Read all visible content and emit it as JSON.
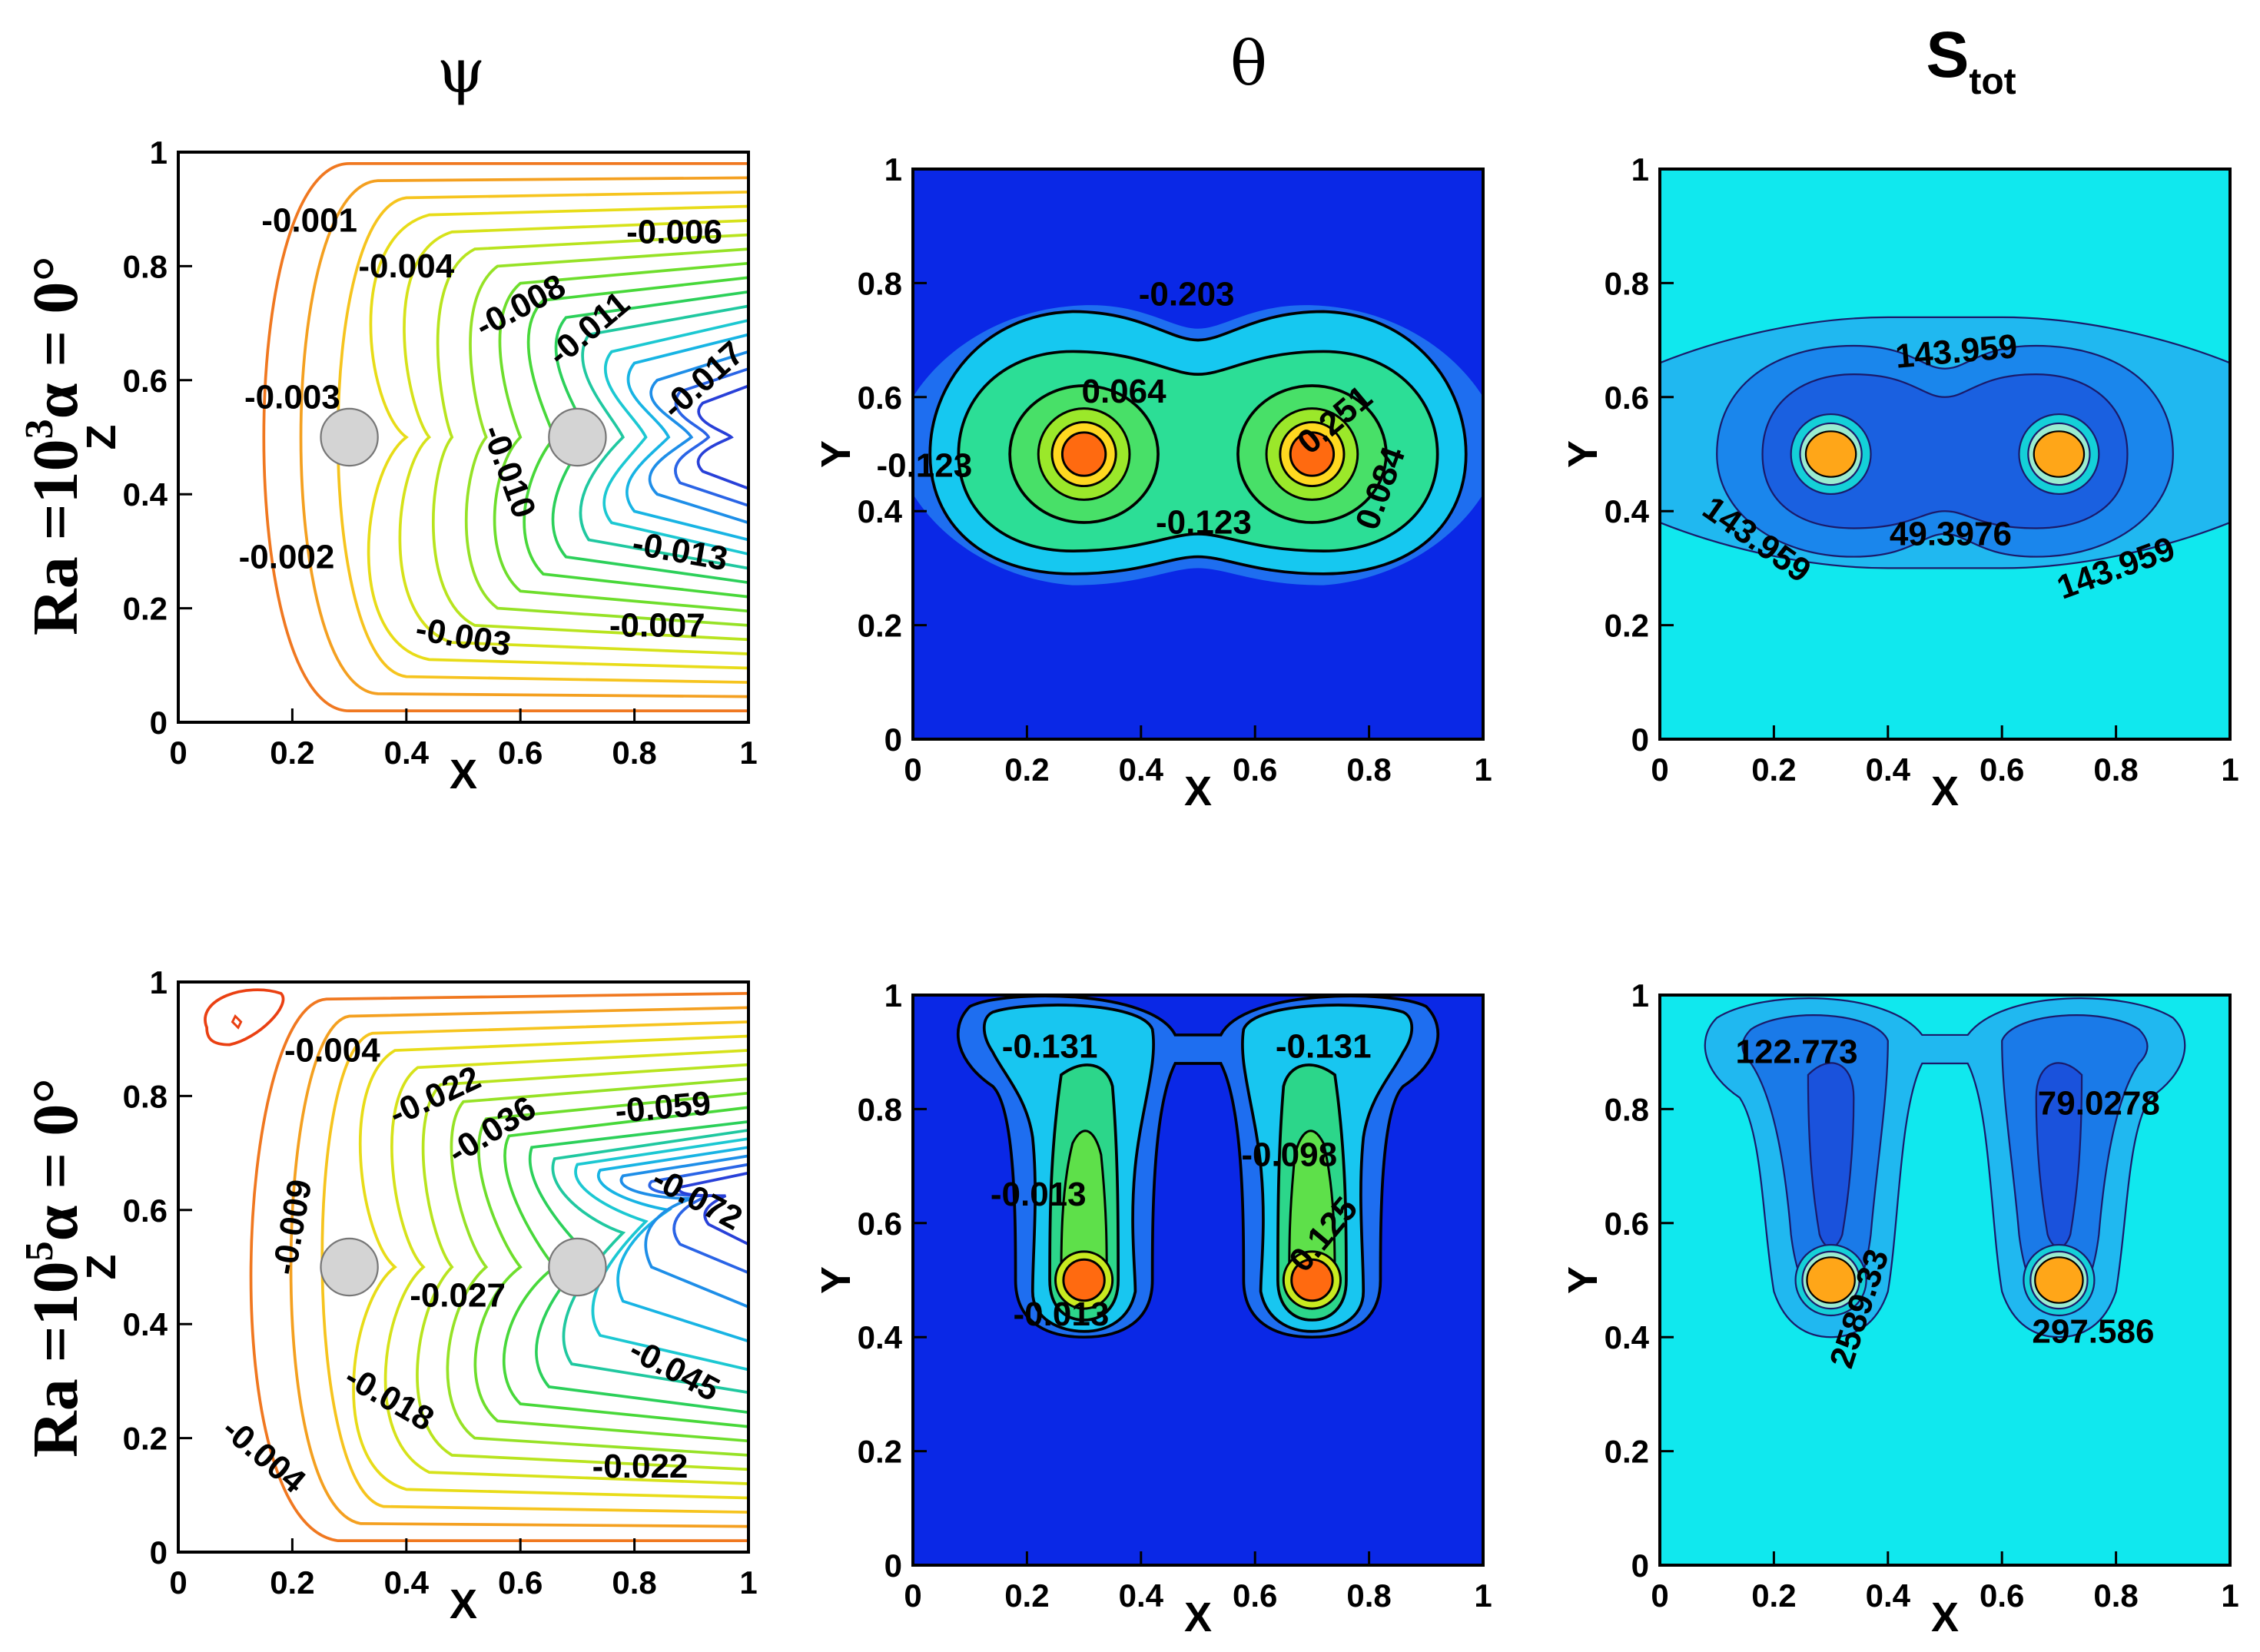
{
  "figure": {
    "column_titles": [
      "ψ",
      "θ",
      "S"
    ],
    "column_title_subscript": "tot",
    "row_titles": [
      {
        "base": "Ra =10",
        "exp": "3",
        "suffix": "α = 0°"
      },
      {
        "base": "Ra =10",
        "exp": "5",
        "suffix": "α = 0°"
      }
    ],
    "colors": {
      "streamline_outer": "#f07820",
      "theta_background": "#0a28e6",
      "entropy_background": "#10e8ee",
      "cylinder_fill": "#d4d4d4",
      "hot_core": "#ff6a10"
    }
  },
  "chart_data": [
    {
      "id": "psi-ra1e3",
      "type": "contour",
      "variable": "ψ",
      "xlabel": "X",
      "ylabel": "Z",
      "xlim": [
        0,
        1
      ],
      "ylim": [
        0,
        1
      ],
      "xticks": [
        "0",
        "0.2",
        "0.4",
        "0.6",
        "0.8",
        "1"
      ],
      "yticks": [
        "0",
        "0.2",
        "0.4",
        "0.6",
        "0.8",
        "1"
      ],
      "contour_labels": [
        {
          "text": "-0.001",
          "x": 0.23,
          "y": 0.88,
          "rot": 0
        },
        {
          "text": "-0.004",
          "x": 0.4,
          "y": 0.8,
          "rot": 0
        },
        {
          "text": "-0.006",
          "x": 0.87,
          "y": 0.86,
          "rot": 0
        },
        {
          "text": "-0.008",
          "x": 0.6,
          "y": 0.73,
          "rot": -28
        },
        {
          "text": "-0.011",
          "x": 0.72,
          "y": 0.69,
          "rot": -40
        },
        {
          "text": "-0.017",
          "x": 0.92,
          "y": 0.6,
          "rot": -42
        },
        {
          "text": "-0.003",
          "x": 0.2,
          "y": 0.57,
          "rot": 0
        },
        {
          "text": "-0.010",
          "x": 0.58,
          "y": 0.44,
          "rot": 70
        },
        {
          "text": "-0.013",
          "x": 0.88,
          "y": 0.3,
          "rot": 10
        },
        {
          "text": "-0.002",
          "x": 0.19,
          "y": 0.29,
          "rot": 0
        },
        {
          "text": "-0.003",
          "x": 0.5,
          "y": 0.15,
          "rot": 10
        },
        {
          "text": "-0.007",
          "x": 0.84,
          "y": 0.17,
          "rot": 0
        }
      ]
    },
    {
      "id": "theta-ra1e3",
      "type": "contour",
      "variable": "θ",
      "xlabel": "X",
      "ylabel": "Y",
      "xlim": [
        0,
        1
      ],
      "ylim": [
        0,
        1
      ],
      "xticks": [
        "0",
        "0.2",
        "0.4",
        "0.6",
        "0.8",
        "1"
      ],
      "yticks": [
        "0",
        "0.2",
        "0.4",
        "0.6",
        "0.8",
        "1"
      ],
      "contour_labels": [
        {
          "text": "-0.203",
          "x": 0.48,
          "y": 0.78,
          "rot": 0
        },
        {
          "text": "0.064",
          "x": 0.37,
          "y": 0.61,
          "rot": 0
        },
        {
          "text": "0.251",
          "x": 0.74,
          "y": 0.56,
          "rot": -40
        },
        {
          "text": "-0.123",
          "x": 0.02,
          "y": 0.48,
          "rot": 0
        },
        {
          "text": "-0.123",
          "x": 0.51,
          "y": 0.38,
          "rot": 0
        },
        {
          "text": "0.084",
          "x": 0.82,
          "y": 0.44,
          "rot": -70
        }
      ]
    },
    {
      "id": "stot-ra1e3",
      "type": "contour",
      "variable": "S_tot",
      "xlabel": "X",
      "ylabel": "Y",
      "xlim": [
        0,
        1
      ],
      "ylim": [
        0,
        1
      ],
      "xticks": [
        "0",
        "0.2",
        "0.4",
        "0.6",
        "0.8",
        "1"
      ],
      "yticks": [
        "0",
        "0.2",
        "0.4",
        "0.6",
        "0.8",
        "1"
      ],
      "contour_labels": [
        {
          "text": "143.959",
          "x": 0.52,
          "y": 0.68,
          "rot": -5
        },
        {
          "text": "143.959",
          "x": 0.17,
          "y": 0.35,
          "rot": 35
        },
        {
          "text": "49.3976",
          "x": 0.51,
          "y": 0.36,
          "rot": 0
        },
        {
          "text": "143.959",
          "x": 0.8,
          "y": 0.3,
          "rot": -20
        }
      ]
    },
    {
      "id": "psi-ra1e5",
      "type": "contour",
      "variable": "ψ",
      "xlabel": "X",
      "ylabel": "Z",
      "xlim": [
        0,
        1
      ],
      "ylim": [
        0,
        1
      ],
      "xticks": [
        "0",
        "0.2",
        "0.4",
        "0.6",
        "0.8",
        "1"
      ],
      "yticks": [
        "0",
        "0.2",
        "0.4",
        "0.6",
        "0.8",
        "1"
      ],
      "contour_labels": [
        {
          "text": "-0.004",
          "x": 0.27,
          "y": 0.88,
          "rot": 0
        },
        {
          "text": "-0.022",
          "x": 0.45,
          "y": 0.8,
          "rot": -25
        },
        {
          "text": "-0.036",
          "x": 0.55,
          "y": 0.74,
          "rot": -32
        },
        {
          "text": "-0.059",
          "x": 0.85,
          "y": 0.78,
          "rot": -5
        },
        {
          "text": "-0.072",
          "x": 0.91,
          "y": 0.62,
          "rot": 28
        },
        {
          "text": "-0.009",
          "x": 0.2,
          "y": 0.57,
          "rot": -80
        },
        {
          "text": "-0.027",
          "x": 0.49,
          "y": 0.45,
          "rot": 0
        },
        {
          "text": "-0.045",
          "x": 0.87,
          "y": 0.32,
          "rot": 28
        },
        {
          "text": "-0.018",
          "x": 0.37,
          "y": 0.27,
          "rot": 30
        },
        {
          "text": "-0.004",
          "x": 0.15,
          "y": 0.17,
          "rot": 40
        },
        {
          "text": "-0.022",
          "x": 0.81,
          "y": 0.15,
          "rot": 0
        }
      ]
    },
    {
      "id": "theta-ra1e5",
      "type": "contour",
      "variable": "θ",
      "xlabel": "X",
      "ylabel": "Y",
      "xlim": [
        0,
        1
      ],
      "ylim": [
        0,
        1
      ],
      "xticks": [
        "0",
        "0.2",
        "0.4",
        "0.6",
        "0.8",
        "1"
      ],
      "yticks": [
        "0",
        "0.2",
        "0.4",
        "0.6",
        "0.8",
        "1"
      ],
      "contour_labels": [
        {
          "text": "-0.131",
          "x": 0.24,
          "y": 0.91,
          "rot": 0
        },
        {
          "text": "-0.131",
          "x": 0.72,
          "y": 0.91,
          "rot": 0
        },
        {
          "text": "-0.098",
          "x": 0.66,
          "y": 0.72,
          "rot": 0
        },
        {
          "text": "-0.013",
          "x": 0.22,
          "y": 0.65,
          "rot": 0
        },
        {
          "text": "0.125",
          "x": 0.72,
          "y": 0.58,
          "rot": -50
        },
        {
          "text": "-0.013",
          "x": 0.26,
          "y": 0.44,
          "rot": 0
        }
      ]
    },
    {
      "id": "stot-ra1e5",
      "type": "contour",
      "variable": "S_tot",
      "xlabel": "X",
      "ylabel": "Y",
      "xlim": [
        0,
        1
      ],
      "ylim": [
        0,
        1
      ],
      "xticks": [
        "0",
        "0.2",
        "0.4",
        "0.6",
        "0.8",
        "1"
      ],
      "yticks": [
        "0",
        "0.2",
        "0.4",
        "0.6",
        "0.8",
        "1"
      ],
      "contour_labels": [
        {
          "text": "122.773",
          "x": 0.24,
          "y": 0.9,
          "rot": 0
        },
        {
          "text": "79.0278",
          "x": 0.77,
          "y": 0.81,
          "rot": 0
        },
        {
          "text": "2589.33",
          "x": 0.35,
          "y": 0.45,
          "rot": -72
        },
        {
          "text": "297.586",
          "x": 0.76,
          "y": 0.41,
          "rot": 0
        }
      ]
    }
  ]
}
